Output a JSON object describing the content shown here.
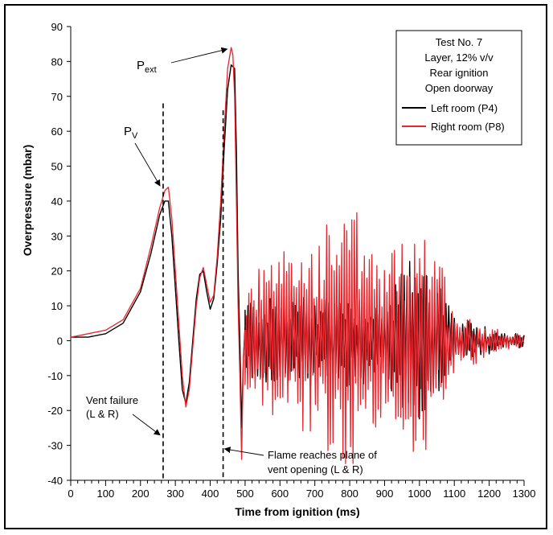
{
  "chart_data": {
    "type": "line",
    "xlabel": "Time from ignition (ms)",
    "ylabel": "Overpressure (mbar)",
    "xlim": [
      0,
      1300
    ],
    "ylim": [
      -40,
      90
    ],
    "xticks": [
      0,
      100,
      200,
      300,
      400,
      500,
      600,
      700,
      800,
      900,
      1000,
      1100,
      1200,
      1300
    ],
    "yticks": [
      -40,
      -30,
      -20,
      -10,
      0,
      10,
      20,
      30,
      40,
      50,
      60,
      70,
      80,
      90
    ],
    "grid": false,
    "legend": {
      "placement": "top-right",
      "header": [
        "Test No. 7",
        "Layer, 12% v/v",
        "Rear ignition",
        "Open doorway"
      ]
    },
    "colors": {
      "left": "#000000",
      "right": "#e8262d"
    },
    "series": [
      {
        "name": "Left room (P4)",
        "color": "#000000",
        "x": [
          0,
          50,
          100,
          150,
          200,
          230,
          255,
          270,
          280,
          290,
          300,
          310,
          320,
          330,
          340,
          350,
          360,
          370,
          380,
          390,
          400,
          410,
          420,
          430,
          440,
          450,
          460,
          470,
          475,
          480,
          485,
          490,
          495,
          500
        ],
        "y": [
          1,
          1,
          2,
          5,
          14,
          25,
          36,
          40,
          40,
          30,
          15,
          0,
          -14,
          -18,
          -12,
          0,
          12,
          19,
          20,
          14,
          9,
          12,
          22,
          35,
          55,
          72,
          79,
          78,
          55,
          20,
          0,
          -25,
          -5,
          4
        ]
      },
      {
        "name": "Right room (P8)",
        "color": "#e8262d",
        "x": [
          0,
          50,
          100,
          150,
          200,
          230,
          255,
          270,
          280,
          290,
          300,
          310,
          320,
          330,
          340,
          350,
          360,
          370,
          380,
          390,
          400,
          410,
          420,
          430,
          440,
          450,
          460,
          465,
          470,
          475,
          480,
          485,
          490,
          495,
          500
        ],
        "y": [
          1,
          2,
          3,
          6,
          15,
          27,
          38,
          43,
          44,
          35,
          20,
          5,
          -10,
          -19,
          -14,
          -2,
          10,
          18,
          21,
          16,
          11,
          13,
          24,
          40,
          60,
          78,
          84,
          82,
          70,
          40,
          10,
          -10,
          -34,
          -5,
          3
        ]
      }
    ],
    "oscillation": {
      "x_start": 500,
      "x_end": 1300,
      "left_envelope": [
        [
          500,
          12
        ],
        [
          700,
          13
        ],
        [
          800,
          14
        ],
        [
          900,
          10
        ],
        [
          950,
          22
        ],
        [
          1000,
          25
        ],
        [
          1050,
          20
        ],
        [
          1100,
          6
        ],
        [
          1200,
          3
        ],
        [
          1300,
          2
        ]
      ],
      "right_envelope": [
        [
          500,
          18
        ],
        [
          700,
          30
        ],
        [
          800,
          40
        ],
        [
          850,
          30
        ],
        [
          900,
          22
        ],
        [
          950,
          30
        ],
        [
          1000,
          36
        ],
        [
          1050,
          28
        ],
        [
          1100,
          8
        ],
        [
          1200,
          4
        ],
        [
          1300,
          2
        ]
      ]
    },
    "markers": [
      {
        "x": 265,
        "y_top": 68,
        "y_bottom": -40
      },
      {
        "x": 437,
        "y_top": 66,
        "y_bottom": -40
      }
    ],
    "annotations": {
      "pv": {
        "text": "P",
        "sub": "V",
        "x": 265,
        "y": 43
      },
      "pext": {
        "text": "P",
        "sub": "ext",
        "x": 462,
        "y": 84
      },
      "vent_failure": [
        "Vent failure",
        "(L & R)"
      ],
      "flame": [
        "Flame reaches plane of",
        "vent opening (L & R)"
      ]
    }
  }
}
